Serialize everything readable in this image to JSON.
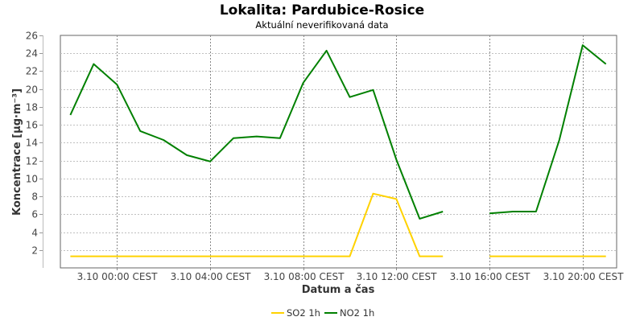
{
  "chart_data": {
    "type": "line",
    "title": "Lokalita: Pardubice-Rosice",
    "subtitle": "Aktuální neverifikovaná data",
    "xlabel": "Datum a čas",
    "ylabel": "Koncentrace [µg·m⁻³]",
    "x_unit": "hours relative to 3.10 00:00 CEST",
    "xlim": [
      -2.43,
      21.46
    ],
    "ylim": [
      0,
      26
    ],
    "grid": true,
    "legend_placement": "bottom-center",
    "x": [
      -2,
      -1,
      0,
      1,
      2,
      3,
      4,
      5,
      6,
      7,
      8,
      9,
      10,
      11,
      12,
      13,
      14,
      15,
      16,
      17,
      18,
      19,
      20,
      21
    ],
    "x_ticks": [
      {
        "value": 0,
        "label": "3.10 00:00 CEST"
      },
      {
        "value": 4,
        "label": "3.10 04:00 CEST"
      },
      {
        "value": 8,
        "label": "3.10 08:00 CEST"
      },
      {
        "value": 12,
        "label": "3.10 12:00 CEST"
      },
      {
        "value": 16,
        "label": "3.10 16:00 CEST"
      },
      {
        "value": 20,
        "label": "3.10 20:00 CEST"
      }
    ],
    "y_ticks": [
      2,
      4,
      6,
      8,
      10,
      12,
      14,
      16,
      18,
      20,
      22,
      24,
      26
    ],
    "series": [
      {
        "name": "SO2 1h",
        "color": "#ffd200",
        "values": [
          1.3,
          1.3,
          1.3,
          1.3,
          1.3,
          1.3,
          1.3,
          1.3,
          1.3,
          1.3,
          1.3,
          1.3,
          1.3,
          8.3,
          7.7,
          1.3,
          1.3,
          null,
          1.3,
          1.3,
          1.3,
          1.3,
          1.3,
          1.3
        ]
      },
      {
        "name": "NO2 1h",
        "color": "#008000",
        "values": [
          17.1,
          22.8,
          20.5,
          15.3,
          14.3,
          12.6,
          11.9,
          14.5,
          14.7,
          14.5,
          20.7,
          24.3,
          19.1,
          19.9,
          12.1,
          5.5,
          6.3,
          null,
          6.1,
          6.3,
          6.3,
          14.3,
          24.9,
          22.8
        ]
      }
    ]
  }
}
